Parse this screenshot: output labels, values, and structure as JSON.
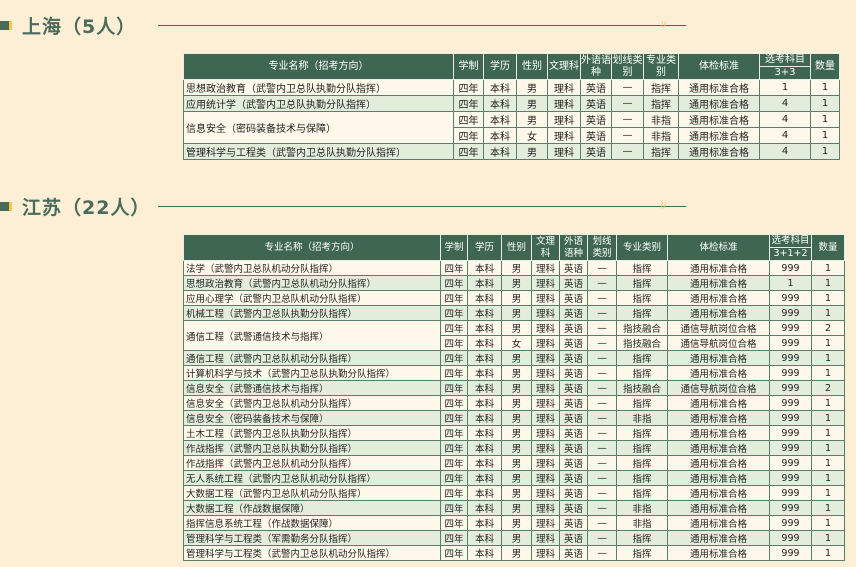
{
  "sections": [
    {
      "title": "上海（5人）",
      "headers": {
        "name": "专业名称（招考方向）",
        "xuezhi": "学制",
        "xueli": "学历",
        "xingbie": "性别",
        "wenli": "文理科",
        "waiyu": "外语语种",
        "huaxian": "划线类别",
        "zhuanye": "专业类别",
        "tijian": "体检标准",
        "xuankao": "选考科目",
        "xuankao_sub": "3+3",
        "shuliang": "数量"
      },
      "groups": [
        {
          "name": "思想政治教育（武警内卫总队执勤分队指挥）",
          "rows": [
            [
              "四年",
              "本科",
              "男",
              "理科",
              "英语",
              "—",
              "指挥",
              "通用标准合格",
              "1",
              "1"
            ]
          ]
        },
        {
          "name": "应用统计学（武警内卫总队执勤分队指挥）",
          "rows": [
            [
              "四年",
              "本科",
              "男",
              "理科",
              "英语",
              "—",
              "指挥",
              "通用标准合格",
              "4",
              "1"
            ]
          ]
        },
        {
          "name": "信息安全（密码装备技术与保障）",
          "rows": [
            [
              "四年",
              "本科",
              "男",
              "理科",
              "英语",
              "—",
              "非指",
              "通用标准合格",
              "4",
              "1"
            ],
            [
              "四年",
              "本科",
              "女",
              "理科",
              "英语",
              "—",
              "非指",
              "通用标准合格",
              "4",
              "1"
            ]
          ]
        },
        {
          "name": "管理科学与工程类（武警内卫总队执勤分队指挥）",
          "rows": [
            [
              "四年",
              "本科",
              "男",
              "理科",
              "英语",
              "—",
              "指挥",
              "通用标准合格",
              "4",
              "1"
            ]
          ]
        }
      ]
    },
    {
      "title": "江苏（22人）",
      "headers": {
        "name": "专业名称（招考方向）",
        "xuezhi": "学制",
        "xueli": "学历",
        "xingbie": "性别",
        "wenli": "文理科",
        "waiyu": "外语语种",
        "huaxian": "划线类别",
        "zhuanye": "专业类别",
        "tijian": "体检标准",
        "xuankao": "选考科目",
        "xuankao_sub": "3+1+2",
        "shuliang": "数量"
      },
      "groups": [
        {
          "name": "法学（武警内卫总队机动分队指挥）",
          "rows": [
            [
              "四年",
              "本科",
              "男",
              "理科",
              "英语",
              "—",
              "指挥",
              "通用标准合格",
              "999",
              "1"
            ]
          ]
        },
        {
          "name": "思想政治教育（武警内卫总队机动分队指挥）",
          "rows": [
            [
              "四年",
              "本科",
              "男",
              "理科",
              "英语",
              "—",
              "指挥",
              "通用标准合格",
              "1",
              "1"
            ]
          ]
        },
        {
          "name": "应用心理学（武警内卫总队机动分队指挥）",
          "rows": [
            [
              "四年",
              "本科",
              "男",
              "理科",
              "英语",
              "—",
              "指挥",
              "通用标准合格",
              "999",
              "1"
            ]
          ]
        },
        {
          "name": "机械工程（武警内卫总队执勤分队指挥）",
          "rows": [
            [
              "四年",
              "本科",
              "男",
              "理科",
              "英语",
              "—",
              "指挥",
              "通用标准合格",
              "999",
              "1"
            ]
          ]
        },
        {
          "name": "通信工程（武警通信技术与指挥）",
          "rows": [
            [
              "四年",
              "本科",
              "男",
              "理科",
              "英语",
              "—",
              "指技融合",
              "通信导航岗位合格",
              "999",
              "2"
            ],
            [
              "四年",
              "本科",
              "女",
              "理科",
              "英语",
              "—",
              "指技融合",
              "通信导航岗位合格",
              "999",
              "1"
            ]
          ]
        },
        {
          "name": "通信工程（武警内卫总队机动分队指挥）",
          "rows": [
            [
              "四年",
              "本科",
              "男",
              "理科",
              "英语",
              "—",
              "指挥",
              "通用标准合格",
              "999",
              "1"
            ]
          ]
        },
        {
          "name": "计算机科学与技术（武警内卫总队执勤分队指挥）",
          "rows": [
            [
              "四年",
              "本科",
              "男",
              "理科",
              "英语",
              "—",
              "指挥",
              "通用标准合格",
              "999",
              "1"
            ]
          ]
        },
        {
          "name": "信息安全（武警通信技术与指挥）",
          "rows": [
            [
              "四年",
              "本科",
              "男",
              "理科",
              "英语",
              "—",
              "指技融合",
              "通信导航岗位合格",
              "999",
              "2"
            ]
          ]
        },
        {
          "name": "信息安全（武警内卫总队机动分队指挥）",
          "rows": [
            [
              "四年",
              "本科",
              "男",
              "理科",
              "英语",
              "—",
              "指挥",
              "通用标准合格",
              "999",
              "1"
            ]
          ]
        },
        {
          "name": "信息安全（密码装备技术与保障）",
          "rows": [
            [
              "四年",
              "本科",
              "男",
              "理科",
              "英语",
              "—",
              "非指",
              "通用标准合格",
              "999",
              "1"
            ]
          ]
        },
        {
          "name": "土木工程（武警内卫总队执勤分队指挥）",
          "rows": [
            [
              "四年",
              "本科",
              "男",
              "理科",
              "英语",
              "—",
              "指挥",
              "通用标准合格",
              "999",
              "1"
            ]
          ]
        },
        {
          "name": "作战指挥（武警内卫总队执勤分队指挥）",
          "rows": [
            [
              "四年",
              "本科",
              "男",
              "理科",
              "英语",
              "—",
              "指挥",
              "通用标准合格",
              "999",
              "1"
            ]
          ]
        },
        {
          "name": "作战指挥（武警内卫总队机动分队指挥）",
          "rows": [
            [
              "四年",
              "本科",
              "男",
              "理科",
              "英语",
              "—",
              "指挥",
              "通用标准合格",
              "999",
              "1"
            ]
          ]
        },
        {
          "name": "无人系统工程（武警内卫总队机动分队指挥）",
          "rows": [
            [
              "四年",
              "本科",
              "男",
              "理科",
              "英语",
              "—",
              "指挥",
              "通用标准合格",
              "999",
              "1"
            ]
          ]
        },
        {
          "name": "大数据工程（武警内卫总队机动分队指挥）",
          "rows": [
            [
              "四年",
              "本科",
              "男",
              "理科",
              "英语",
              "—",
              "指挥",
              "通用标准合格",
              "999",
              "1"
            ]
          ]
        },
        {
          "name": "大数据工程（作战数据保障）",
          "rows": [
            [
              "四年",
              "本科",
              "男",
              "理科",
              "英语",
              "—",
              "非指",
              "通用标准合格",
              "999",
              "1"
            ]
          ]
        },
        {
          "name": "指挥信息系统工程（作战数据保障）",
          "rows": [
            [
              "四年",
              "本科",
              "男",
              "理科",
              "英语",
              "—",
              "非指",
              "通用标准合格",
              "999",
              "1"
            ]
          ]
        },
        {
          "name": "管理科学与工程类（军需勤务分队指挥）",
          "rows": [
            [
              "四年",
              "本科",
              "男",
              "理科",
              "英语",
              "—",
              "指挥",
              "通用标准合格",
              "999",
              "1"
            ]
          ]
        },
        {
          "name": "管理科学与工程类（武警内卫总队机动分队指挥）",
          "rows": [
            [
              "四年",
              "本科",
              "男",
              "理科",
              "英语",
              "—",
              "指挥",
              "通用标准合格",
              "999",
              "1"
            ]
          ]
        }
      ]
    }
  ],
  "colors": {
    "background": "#fdefd6",
    "header": "#3f6651",
    "row_cream": "#fdf8e9",
    "row_green": "#e2eedb",
    "heading": "#4a6b5a",
    "accent": "#f5c84a"
  }
}
